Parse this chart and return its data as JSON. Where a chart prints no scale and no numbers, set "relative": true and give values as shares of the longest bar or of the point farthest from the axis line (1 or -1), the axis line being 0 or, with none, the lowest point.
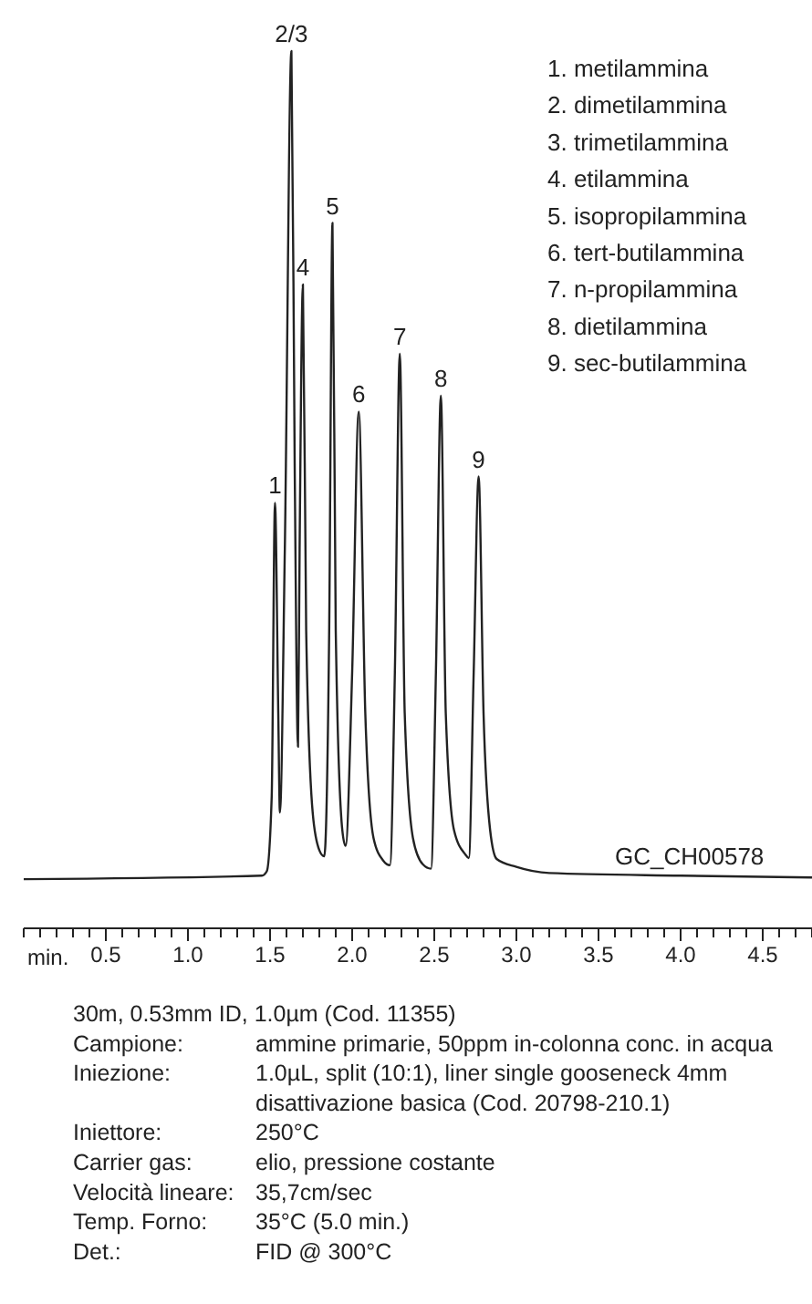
{
  "chart_data": {
    "type": "line",
    "relative": true,
    "tick_labels": "x",
    "xlabel": "min.",
    "xlim": [
      0,
      4.8
    ],
    "xticks": [
      {
        "value": 0,
        "label": null
      },
      {
        "value": 0.1,
        "label": null
      },
      {
        "value": 0.2,
        "label": null
      },
      {
        "value": 0.3,
        "label": null
      },
      {
        "value": 0.4,
        "label": null
      },
      0.5,
      {
        "value": 0.6,
        "label": null
      },
      {
        "value": 0.7,
        "label": null
      },
      {
        "value": 0.8,
        "label": null
      },
      {
        "value": 0.9,
        "label": null
      },
      {
        "value": 1,
        "label": "1.0"
      },
      {
        "value": 1.1,
        "label": null
      },
      {
        "value": 1.2,
        "label": null
      },
      {
        "value": 1.3,
        "label": null
      },
      {
        "value": 1.4,
        "label": null
      },
      1.5,
      {
        "value": 1.6,
        "label": null
      },
      {
        "value": 1.7,
        "label": null
      },
      {
        "value": 1.8,
        "label": null
      },
      {
        "value": 1.9,
        "label": null
      },
      {
        "value": 2,
        "label": "2.0"
      },
      {
        "value": 2.1,
        "label": null
      },
      {
        "value": 2.2,
        "label": null
      },
      {
        "value": 2.3,
        "label": null
      },
      {
        "value": 2.4,
        "label": null
      },
      2.5,
      {
        "value": 2.6,
        "label": null
      },
      {
        "value": 2.7,
        "label": null
      },
      {
        "value": 2.8,
        "label": null
      },
      {
        "value": 2.9,
        "label": null
      },
      {
        "value": 3,
        "label": "3.0"
      },
      {
        "value": 3.1,
        "label": null
      },
      {
        "value": 3.2,
        "label": null
      },
      {
        "value": 3.3,
        "label": null
      },
      {
        "value": 3.4,
        "label": null
      },
      3.5,
      {
        "value": 3.6,
        "label": null
      },
      {
        "value": 3.7,
        "label": null
      },
      {
        "value": 3.8,
        "label": null
      },
      {
        "value": 3.9,
        "label": null
      },
      {
        "value": 4,
        "label": "4.0"
      },
      {
        "value": 4.1,
        "label": null
      },
      {
        "value": 4.2,
        "label": null
      },
      {
        "value": 4.3,
        "label": null
      },
      {
        "value": 4.4,
        "label": null
      },
      4.5,
      {
        "value": 4.6,
        "label": null
      },
      {
        "value": 4.7,
        "label": null
      },
      {
        "value": 4.8,
        "label": null
      }
    ],
    "series": [
      {
        "color": "#222222",
        "x": [
          0,
          1.45,
          1.48,
          1.51,
          1.53,
          1.55,
          1.56,
          1.59,
          1.63,
          1.65,
          1.67,
          1.68,
          1.7,
          1.72,
          1.76,
          1.8,
          1.83,
          1.86,
          1.88,
          1.9,
          1.94,
          1.96,
          2.0,
          2.04,
          2.08,
          2.13,
          2.19,
          2.23,
          2.26,
          2.29,
          2.32,
          2.37,
          2.43,
          2.48,
          2.51,
          2.54,
          2.57,
          2.62,
          2.69,
          2.71,
          2.74,
          2.77,
          2.8,
          2.84,
          2.88,
          3.0,
          3.2,
          4.0,
          4.8
        ],
        "values": [
          0.056,
          0.06,
          0.065,
          0.15,
          0.485,
          0.245,
          0.132,
          0.433,
          1,
          0.528,
          0.207,
          0.433,
          0.734,
          0.339,
          0.131,
          0.089,
          0.082,
          0.339,
          0.804,
          0.339,
          0.112,
          0.094,
          0.292,
          0.589,
          0.245,
          0.103,
          0.077,
          0.072,
          0.292,
          0.655,
          0.245,
          0.103,
          0.073,
          0.068,
          0.292,
          0.607,
          0.245,
          0.112,
          0.084,
          0.08,
          0.292,
          0.515,
          0.245,
          0.112,
          0.079,
          0.07,
          0.063,
          0.06,
          0.058
        ]
      }
    ],
    "annotations": [
      "1. metilammina",
      "2. dimetilammina",
      "3. trimetilammina",
      "4. etilammina",
      "5. isopropilammina",
      "6. tert-butilammina",
      "7. n-propilammina",
      "8. dietilammina",
      "9. sec-butilammina",
      "GC_CH00578",
      "30m, 0.53mm ID, 1.0µm (Cod. 11355)",
      "Campione:",
      "ammine primarie, 50ppm in-colonna conc. in acqua",
      "Iniezione:",
      "1.0µL, split (10:1), liner single gooseneck 4mm disattivazione basica (Cod. 20798-210.1)",
      "Iniettore:",
      "250°C",
      "Carrier gas:",
      "elio, pressione costante",
      "Velocità lineare:",
      "35,7cm/sec",
      "Temp. Forno:",
      "35°C (5.0 min.)",
      "Det.:",
      "FID @ 300°C",
      {
        "text": "1",
        "x": 1.53,
        "y": 0.485
      },
      {
        "text": "2/3",
        "x": 1.63,
        "y": 1
      },
      {
        "text": "4",
        "x": 1.7,
        "y": 0.734
      },
      {
        "text": "5",
        "x": 1.88,
        "y": 0.804
      },
      {
        "text": "6",
        "x": 2.04,
        "y": 0.589
      },
      {
        "text": "7",
        "x": 2.29,
        "y": 0.655
      },
      {
        "text": "8",
        "x": 2.54,
        "y": 0.607
      },
      {
        "text": "9",
        "x": 2.77,
        "y": 0.515
      }
    ]
  }
}
